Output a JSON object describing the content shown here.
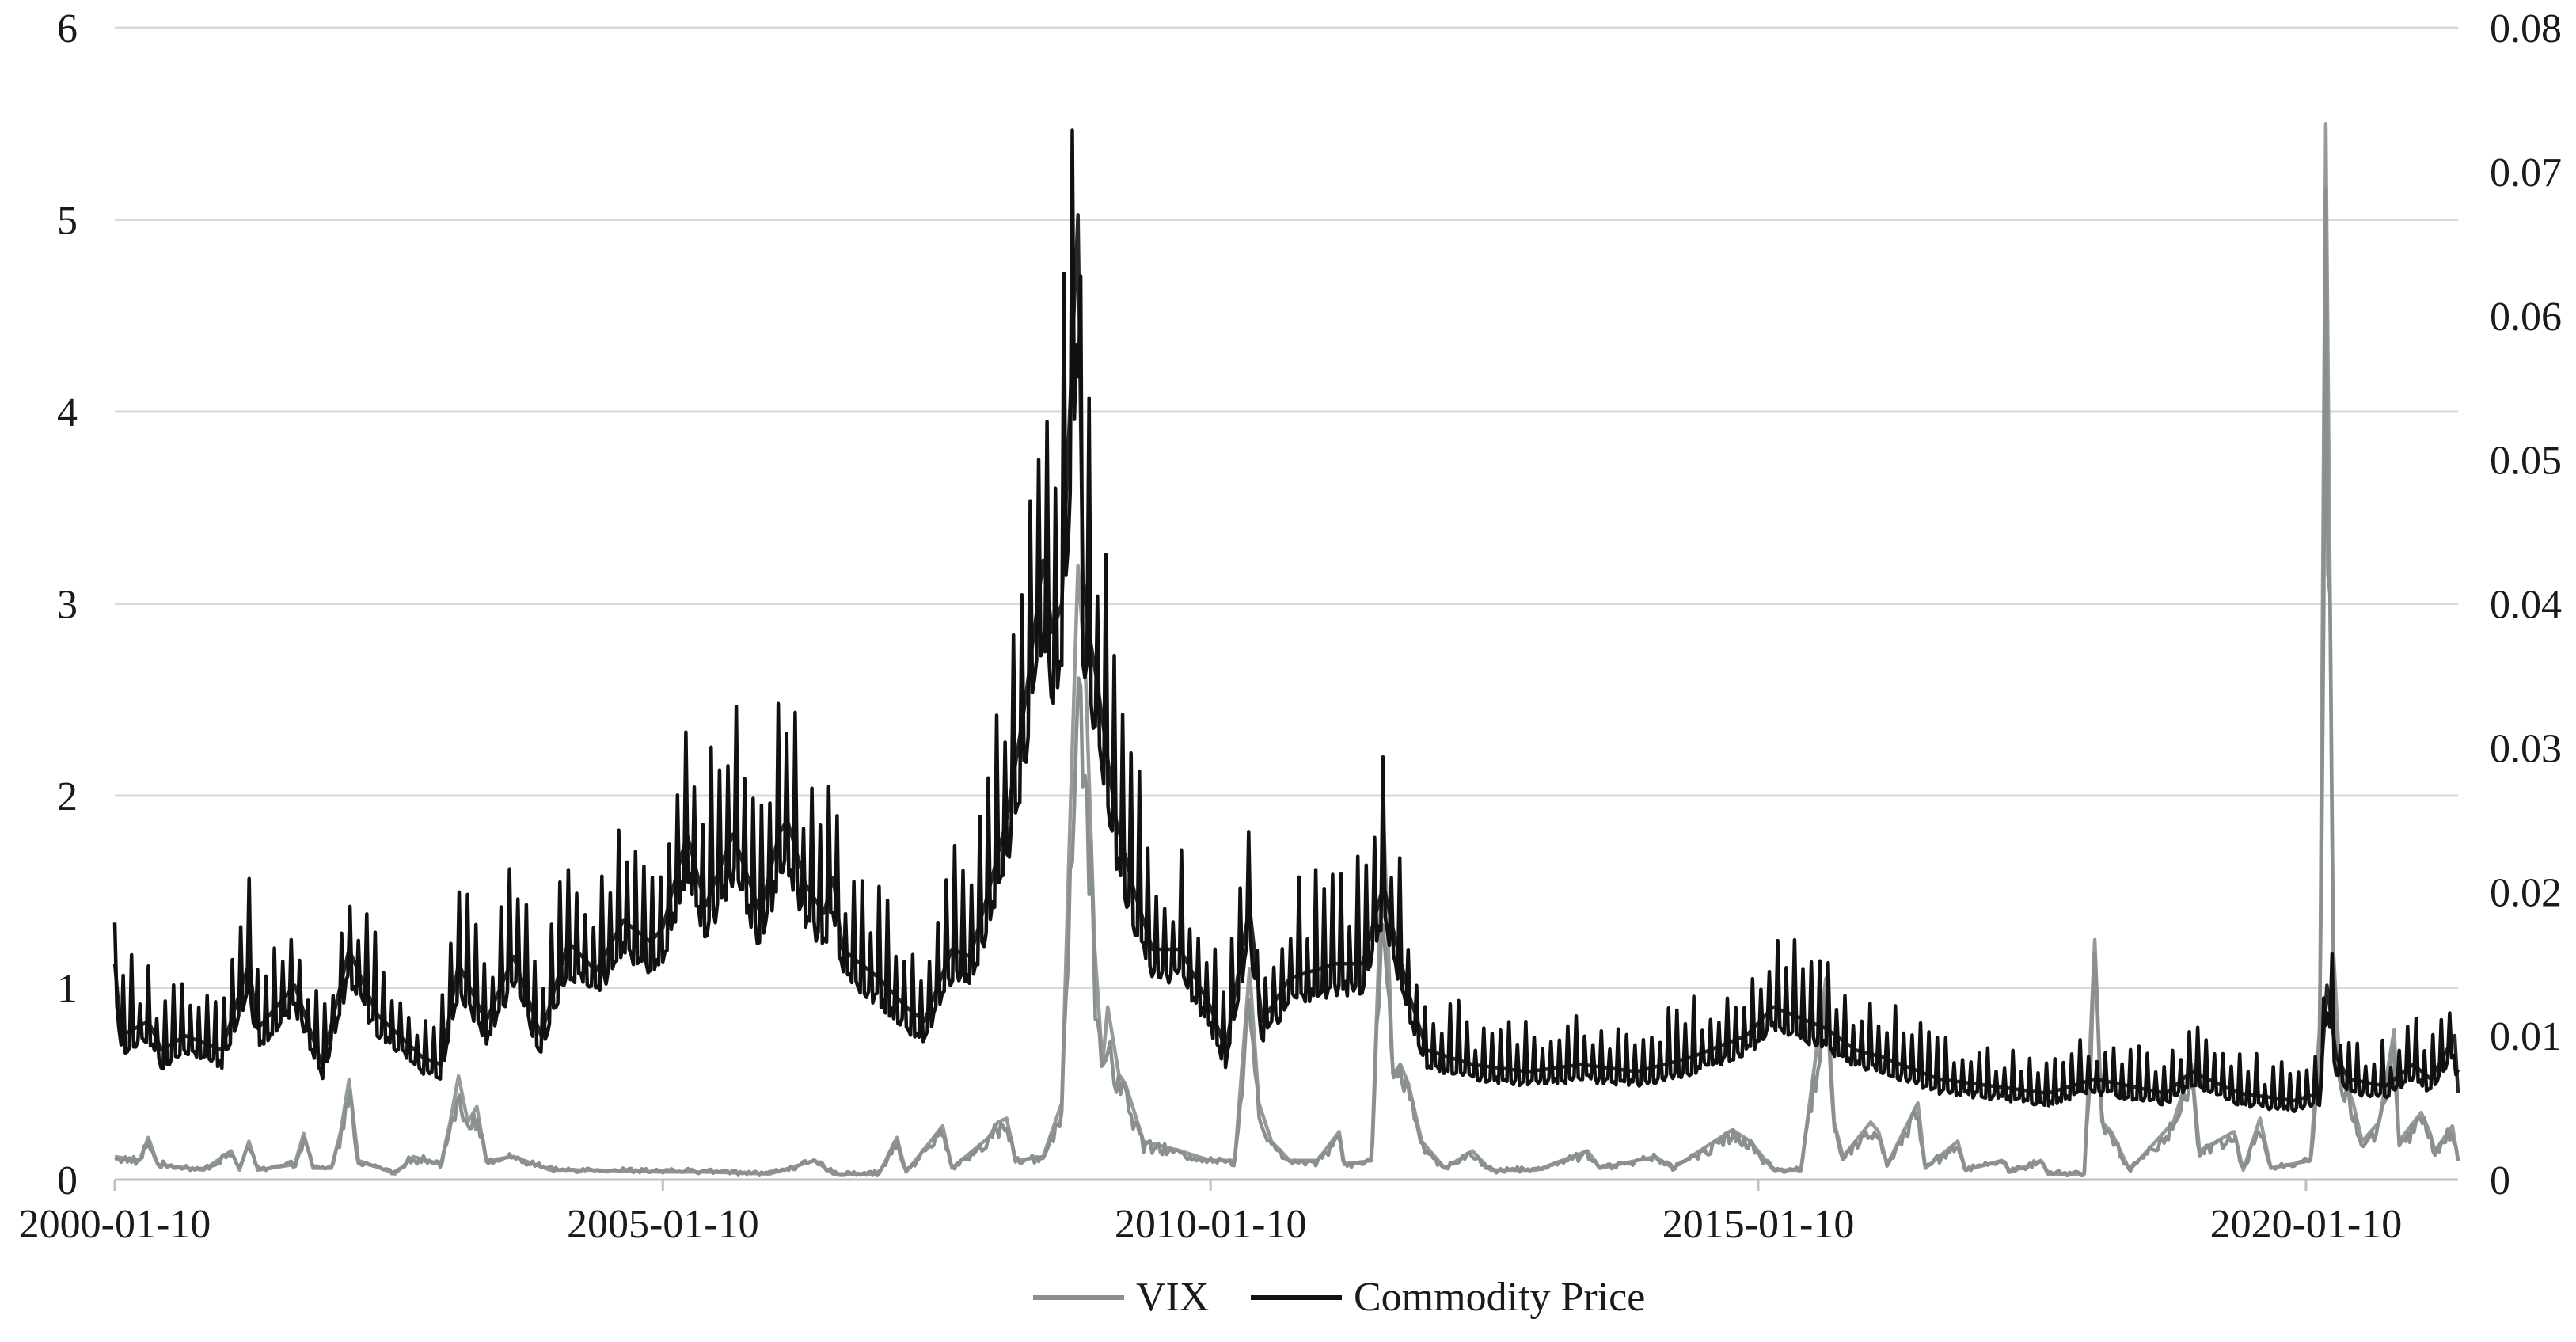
{
  "chart_data": {
    "type": "line",
    "title": "",
    "xlabel": "",
    "ylabel_left": "",
    "ylabel_right": "",
    "legend_position": "bottom-center",
    "grid": {
      "horizontal": true,
      "vertical": false
    },
    "x_ticks": [
      "2000-01-10",
      "2005-01-10",
      "2010-01-10",
      "2015-01-10",
      "2020-01-10"
    ],
    "x_range": [
      "2000-01-10",
      "2021-05-31"
    ],
    "y_left": {
      "ticks": [
        "0",
        "1",
        "2",
        "3",
        "4",
        "5",
        "6"
      ],
      "range": [
        0,
        6
      ]
    },
    "y_right": {
      "ticks": [
        "0",
        "0.01",
        "0.02",
        "0.03",
        "0.04",
        "0.05",
        "0.06",
        "0.07",
        "0.08"
      ],
      "range": [
        0,
        0.08
      ]
    },
    "series": [
      {
        "name": "VIX",
        "axis": "left",
        "color": "#8a8f8f",
        "points": [
          [
            "2000-01-10",
            0.12
          ],
          [
            "2000-04-01",
            0.1
          ],
          [
            "2000-05-01",
            0.22
          ],
          [
            "2000-06-01",
            0.08
          ],
          [
            "2000-11-01",
            0.05
          ],
          [
            "2001-02-01",
            0.15
          ],
          [
            "2001-03-01",
            0.05
          ],
          [
            "2001-04-01",
            0.2
          ],
          [
            "2001-05-01",
            0.05
          ],
          [
            "2001-09-01",
            0.08
          ],
          [
            "2001-10-01",
            0.24
          ],
          [
            "2001-11-01",
            0.06
          ],
          [
            "2002-01-01",
            0.06
          ],
          [
            "2002-02-01",
            0.25
          ],
          [
            "2002-03-01",
            0.52
          ],
          [
            "2002-04-01",
            0.1
          ],
          [
            "2002-07-01",
            0.05
          ],
          [
            "2002-08-01",
            0.03
          ],
          [
            "2002-10-01",
            0.12
          ],
          [
            "2003-01-01",
            0.08
          ],
          [
            "2003-02-01",
            0.3
          ],
          [
            "2003-03-01",
            0.54
          ],
          [
            "2003-04-01",
            0.3
          ],
          [
            "2003-05-01",
            0.38
          ],
          [
            "2003-06-01",
            0.1
          ],
          [
            "2003-09-01",
            0.12
          ],
          [
            "2004-01-01",
            0.05
          ],
          [
            "2004-06-01",
            0.05
          ],
          [
            "2005-01-10",
            0.04
          ],
          [
            "2005-06-01",
            0.04
          ],
          [
            "2006-01-01",
            0.03
          ],
          [
            "2006-06-01",
            0.1
          ],
          [
            "2006-08-01",
            0.03
          ],
          [
            "2007-01-01",
            0.03
          ],
          [
            "2007-03-01",
            0.22
          ],
          [
            "2007-04-01",
            0.04
          ],
          [
            "2007-08-01",
            0.28
          ],
          [
            "2007-09-01",
            0.06
          ],
          [
            "2008-01-01",
            0.22
          ],
          [
            "2008-02-01",
            0.3
          ],
          [
            "2008-03-01",
            0.32
          ],
          [
            "2008-04-01",
            0.1
          ],
          [
            "2008-07-01",
            0.12
          ],
          [
            "2008-09-01",
            0.4
          ],
          [
            "2008-10-01",
            2.0
          ],
          [
            "2008-10-25",
            3.2
          ],
          [
            "2008-11-20",
            2.6
          ],
          [
            "2008-12-20",
            1.2
          ],
          [
            "2009-01-15",
            0.6
          ],
          [
            "2009-02-01",
            0.9
          ],
          [
            "2009-03-10",
            0.55
          ],
          [
            "2009-04-01",
            0.5
          ],
          [
            "2009-06-01",
            0.2
          ],
          [
            "2009-10-01",
            0.15
          ],
          [
            "2010-01-10",
            0.1
          ],
          [
            "2010-04-01",
            0.1
          ],
          [
            "2010-05-20",
            1.1
          ],
          [
            "2010-06-20",
            0.4
          ],
          [
            "2010-08-01",
            0.2
          ],
          [
            "2010-10-01",
            0.1
          ],
          [
            "2011-01-01",
            0.1
          ],
          [
            "2011-03-15",
            0.25
          ],
          [
            "2011-04-01",
            0.08
          ],
          [
            "2011-07-01",
            0.1
          ],
          [
            "2011-08-10",
            1.88
          ],
          [
            "2011-09-10",
            0.55
          ],
          [
            "2011-10-05",
            0.6
          ],
          [
            "2011-11-01",
            0.5
          ],
          [
            "2011-12-15",
            0.2
          ],
          [
            "2012-03-01",
            0.06
          ],
          [
            "2012-06-01",
            0.15
          ],
          [
            "2012-08-01",
            0.05
          ],
          [
            "2013-01-01",
            0.05
          ],
          [
            "2013-06-20",
            0.15
          ],
          [
            "2013-08-01",
            0.06
          ],
          [
            "2014-02-01",
            0.12
          ],
          [
            "2014-04-01",
            0.06
          ],
          [
            "2014-10-15",
            0.26
          ],
          [
            "2014-12-15",
            0.2
          ],
          [
            "2015-03-01",
            0.05
          ],
          [
            "2015-06-01",
            0.05
          ],
          [
            "2015-08-24",
            1.05
          ],
          [
            "2015-09-20",
            0.3
          ],
          [
            "2015-10-20",
            0.12
          ],
          [
            "2016-01-20",
            0.3
          ],
          [
            "2016-02-15",
            0.25
          ],
          [
            "2016-03-15",
            0.08
          ],
          [
            "2016-06-25",
            0.4
          ],
          [
            "2016-07-20",
            0.06
          ],
          [
            "2016-11-05",
            0.2
          ],
          [
            "2016-12-01",
            0.05
          ],
          [
            "2017-04-01",
            0.1
          ],
          [
            "2017-05-01",
            0.04
          ],
          [
            "2017-08-10",
            0.1
          ],
          [
            "2017-09-01",
            0.03
          ],
          [
            "2018-01-01",
            0.03
          ],
          [
            "2018-02-05",
            1.25
          ],
          [
            "2018-03-01",
            0.3
          ],
          [
            "2018-04-01",
            0.25
          ],
          [
            "2018-06-01",
            0.05
          ],
          [
            "2018-10-25",
            0.3
          ],
          [
            "2018-12-24",
            0.6
          ],
          [
            "2019-01-20",
            0.15
          ],
          [
            "2019-05-15",
            0.25
          ],
          [
            "2019-06-15",
            0.05
          ],
          [
            "2019-08-10",
            0.32
          ],
          [
            "2019-09-15",
            0.06
          ],
          [
            "2020-01-25",
            0.1
          ],
          [
            "2020-02-25",
            0.8
          ],
          [
            "2020-03-16",
            5.5
          ],
          [
            "2020-04-10",
            1.2
          ],
          [
            "2020-05-01",
            0.6
          ],
          [
            "2020-06-15",
            0.4
          ],
          [
            "2020-07-15",
            0.2
          ],
          [
            "2020-09-10",
            0.3
          ],
          [
            "2020-10-30",
            0.78
          ],
          [
            "2020-11-15",
            0.2
          ],
          [
            "2021-01-28",
            0.35
          ],
          [
            "2021-02-25",
            0.25
          ],
          [
            "2021-03-15",
            0.15
          ],
          [
            "2021-05-12",
            0.28
          ],
          [
            "2021-05-31",
            0.1
          ]
        ]
      },
      {
        "name": "Commodity Price",
        "axis": "right",
        "color": "#111111",
        "points": [
          [
            "2000-01-10",
            0.015
          ],
          [
            "2000-02-01",
            0.01
          ],
          [
            "2000-05-01",
            0.011
          ],
          [
            "2000-06-15",
            0.009
          ],
          [
            "2000-09-01",
            0.01
          ],
          [
            "2001-01-01",
            0.009
          ],
          [
            "2001-04-01",
            0.015
          ],
          [
            "2001-05-01",
            0.0105
          ],
          [
            "2001-09-01",
            0.0135
          ],
          [
            "2001-12-01",
            0.008
          ],
          [
            "2002-03-01",
            0.016
          ],
          [
            "2002-06-01",
            0.0115
          ],
          [
            "2002-11-01",
            0.0085
          ],
          [
            "2003-01-01",
            0.008
          ],
          [
            "2003-03-01",
            0.015
          ],
          [
            "2003-06-01",
            0.011
          ],
          [
            "2003-09-01",
            0.0155
          ],
          [
            "2003-12-01",
            0.01
          ],
          [
            "2004-03-01",
            0.0165
          ],
          [
            "2004-06-01",
            0.0145
          ],
          [
            "2004-09-01",
            0.018
          ],
          [
            "2004-12-01",
            0.0165
          ],
          [
            "2005-01-10",
            0.0175
          ],
          [
            "2005-04-01",
            0.024
          ],
          [
            "2005-06-01",
            0.019
          ],
          [
            "2005-09-01",
            0.024
          ],
          [
            "2005-12-01",
            0.0185
          ],
          [
            "2006-02-01",
            0.024
          ],
          [
            "2006-03-01",
            0.025
          ],
          [
            "2006-05-01",
            0.0205
          ],
          [
            "2006-07-01",
            0.0185
          ],
          [
            "2006-08-01",
            0.021
          ],
          [
            "2006-09-01",
            0.016
          ],
          [
            "2007-01-01",
            0.014
          ],
          [
            "2007-04-01",
            0.012
          ],
          [
            "2007-06-01",
            0.011
          ],
          [
            "2007-09-01",
            0.016
          ],
          [
            "2007-11-01",
            0.0155
          ],
          [
            "2008-01-01",
            0.02
          ],
          [
            "2008-03-01",
            0.025
          ],
          [
            "2008-05-01",
            0.033
          ],
          [
            "2008-07-01",
            0.043
          ],
          [
            "2008-08-01",
            0.038
          ],
          [
            "2008-09-01",
            0.04
          ],
          [
            "2008-10-25",
            0.067
          ],
          [
            "2008-11-10",
            0.042
          ],
          [
            "2008-12-01",
            0.038
          ],
          [
            "2009-01-01",
            0.034
          ],
          [
            "2009-03-01",
            0.025
          ],
          [
            "2009-05-01",
            0.02
          ],
          [
            "2009-07-01",
            0.016
          ],
          [
            "2009-10-01",
            0.016
          ],
          [
            "2010-01-10",
            0.012
          ],
          [
            "2010-03-01",
            0.009
          ],
          [
            "2010-05-20",
            0.019
          ],
          [
            "2010-07-01",
            0.011
          ],
          [
            "2010-10-01",
            0.014
          ],
          [
            "2011-03-01",
            0.015
          ],
          [
            "2011-06-01",
            0.015
          ],
          [
            "2011-08-10",
            0.0205
          ],
          [
            "2011-09-15",
            0.017
          ],
          [
            "2011-11-01",
            0.013
          ],
          [
            "2012-01-01",
            0.009
          ],
          [
            "2012-06-01",
            0.008
          ],
          [
            "2012-12-01",
            0.0075
          ],
          [
            "2013-06-01",
            0.008
          ],
          [
            "2013-12-01",
            0.0075
          ],
          [
            "2014-06-01",
            0.0085
          ],
          [
            "2014-12-01",
            0.01
          ],
          [
            "2015-03-01",
            0.012
          ],
          [
            "2015-08-24",
            0.0105
          ],
          [
            "2015-12-01",
            0.009
          ],
          [
            "2016-03-01",
            0.0085
          ],
          [
            "2016-09-01",
            0.007
          ],
          [
            "2017-03-01",
            0.0065
          ],
          [
            "2017-09-01",
            0.006
          ],
          [
            "2018-02-05",
            0.007
          ],
          [
            "2018-06-01",
            0.0065
          ],
          [
            "2018-10-01",
            0.006
          ],
          [
            "2018-12-24",
            0.0075
          ],
          [
            "2019-06-01",
            0.006
          ],
          [
            "2019-12-01",
            0.0055
          ],
          [
            "2020-02-25",
            0.006
          ],
          [
            "2020-03-20",
            0.0135
          ],
          [
            "2020-04-20",
            0.0085
          ],
          [
            "2020-06-01",
            0.007
          ],
          [
            "2020-10-01",
            0.0065
          ],
          [
            "2021-01-01",
            0.008
          ],
          [
            "2021-03-01",
            0.007
          ],
          [
            "2021-05-20",
            0.01
          ],
          [
            "2021-05-31",
            0.006
          ]
        ]
      }
    ]
  }
}
